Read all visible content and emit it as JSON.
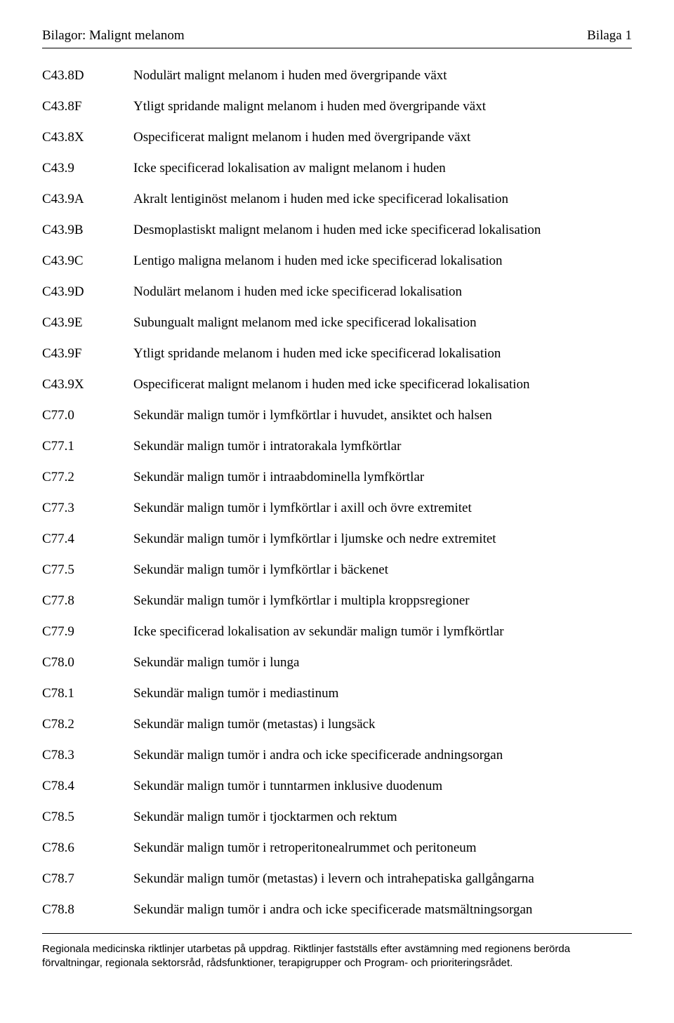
{
  "header": {
    "left": "Bilagor: Malignt melanom",
    "right": "Bilaga 1"
  },
  "entries": [
    {
      "code": "C43.8D",
      "desc": "Nodulärt malignt melanom i huden med övergripande växt"
    },
    {
      "code": "C43.8F",
      "desc": "Ytligt spridande malignt melanom i huden med övergripande växt"
    },
    {
      "code": "C43.8X",
      "desc": "Ospecificerat malignt melanom i huden med övergripande växt"
    },
    {
      "code": "C43.9",
      "desc": "Icke specificerad lokalisation av malignt melanom i huden"
    },
    {
      "code": "C43.9A",
      "desc": "Akralt lentiginöst melanom i huden med icke specificerad lokalisation"
    },
    {
      "code": "C43.9B",
      "desc": "Desmoplastiskt malignt melanom i huden med icke specificerad lokalisation"
    },
    {
      "code": "C43.9C",
      "desc": "Lentigo maligna melanom i huden med icke specificerad lokalisation"
    },
    {
      "code": "C43.9D",
      "desc": "Nodulärt melanom i huden med icke specificerad lokalisation"
    },
    {
      "code": "C43.9E",
      "desc": "Subungualt malignt melanom med icke specificerad lokalisation"
    },
    {
      "code": "C43.9F",
      "desc": "Ytligt spridande melanom i huden med icke specificerad lokalisation"
    },
    {
      "code": "C43.9X",
      "desc": "Ospecificerat malignt melanom i huden med icke specificerad lokalisation"
    },
    {
      "code": "C77.0",
      "desc": "Sekundär malign tumör i lymfkörtlar i huvudet, ansiktet och halsen"
    },
    {
      "code": "C77.1",
      "desc": "Sekundär malign tumör i intratorakala lymfkörtlar"
    },
    {
      "code": "C77.2",
      "desc": "Sekundär malign tumör i intraabdominella lymfkörtlar"
    },
    {
      "code": "C77.3",
      "desc": "Sekundär malign tumör i lymfkörtlar i axill och övre extremitet"
    },
    {
      "code": "C77.4",
      "desc": "Sekundär malign tumör i lymfkörtlar i ljumske och nedre extremitet"
    },
    {
      "code": "C77.5",
      "desc": "Sekundär malign tumör i lymfkörtlar i bäckenet"
    },
    {
      "code": "C77.8",
      "desc": "Sekundär malign tumör i lymfkörtlar i multipla kroppsregioner"
    },
    {
      "code": "C77.9",
      "desc": "Icke specificerad lokalisation av sekundär malign tumör i lymfkörtlar"
    },
    {
      "code": "C78.0",
      "desc": "Sekundär malign tumör i lunga"
    },
    {
      "code": "C78.1",
      "desc": "Sekundär malign tumör i mediastinum"
    },
    {
      "code": "C78.2",
      "desc": "Sekundär malign tumör (metastas) i lungsäck"
    },
    {
      "code": "C78.3",
      "desc": "Sekundär malign tumör i andra och icke specificerade andningsorgan"
    },
    {
      "code": "C78.4",
      "desc": "Sekundär malign tumör i tunntarmen inklusive duodenum"
    },
    {
      "code": "C78.5",
      "desc": "Sekundär malign tumör i tjocktarmen och rektum"
    },
    {
      "code": "C78.6",
      "desc": "Sekundär malign tumör i retroperitonealrummet och peritoneum"
    },
    {
      "code": "C78.7",
      "desc": "Sekundär malign tumör (metastas) i levern och intrahepatiska gallgångarna"
    },
    {
      "code": "C78.8",
      "desc": "Sekundär malign tumör i andra och icke specificerade matsmältningsorgan"
    }
  ],
  "footer": {
    "line1": "Regionala medicinska riktlinjer utarbetas på uppdrag. Riktlinjer fastställs efter avstämning med regionens berörda",
    "line2": "förvaltningar, regionala sektorsråd, rådsfunktioner, terapigrupper och Program- och prioriteringsrådet."
  }
}
